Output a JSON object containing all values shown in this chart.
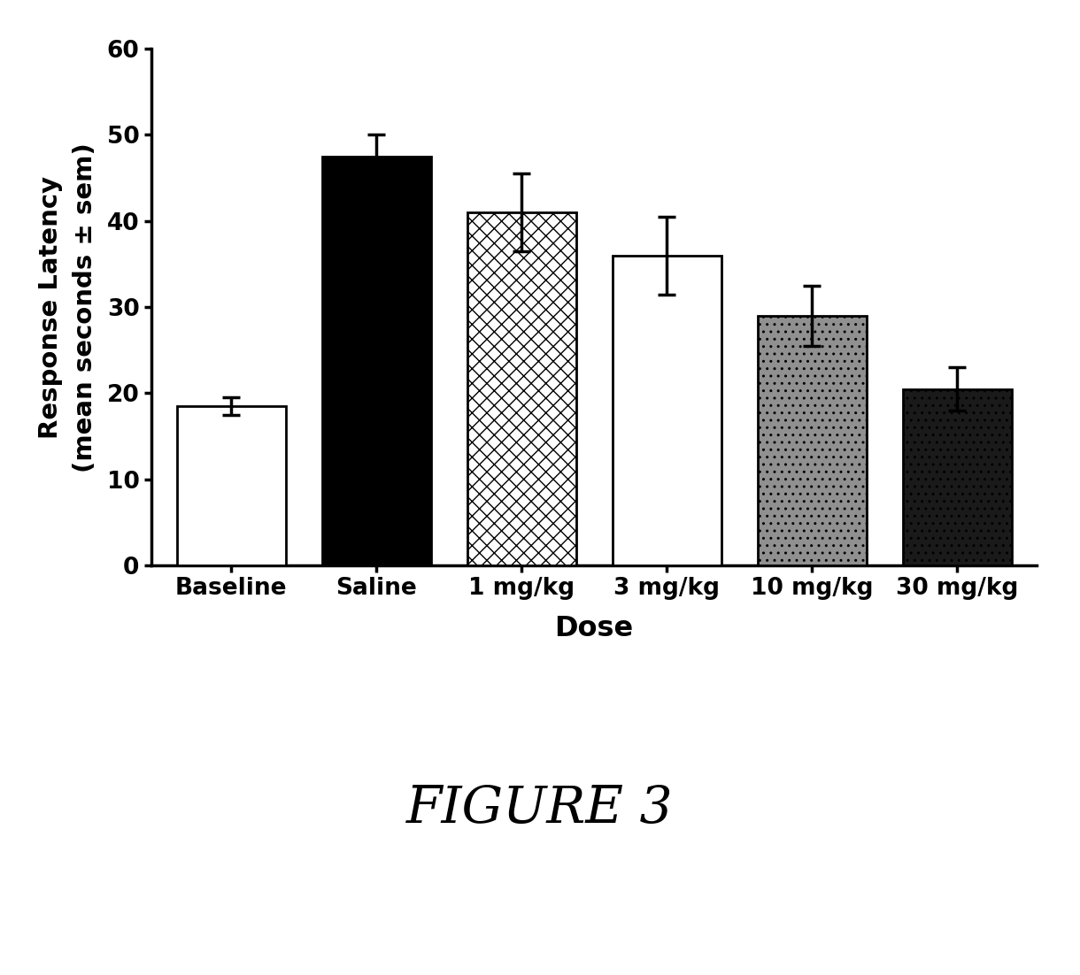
{
  "categories": [
    "Baseline",
    "Saline",
    "1 mg/kg",
    "3 mg/kg",
    "10 mg/kg",
    "30 mg/kg"
  ],
  "values": [
    18.5,
    47.5,
    41.0,
    36.0,
    29.0,
    20.5
  ],
  "errors": [
    1.0,
    2.5,
    4.5,
    4.5,
    3.5,
    2.5
  ],
  "ylabel": "Response Latency\n(mean seconds ± sem)",
  "xlabel": "Dose",
  "ylim": [
    0,
    60
  ],
  "yticks": [
    0,
    10,
    20,
    30,
    40,
    50,
    60
  ],
  "figure_label": "FIGURE 3",
  "background_color": "#ffffff",
  "bar_width": 0.75,
  "figure_label_fontsize": 42,
  "label_fontsize": 21,
  "tick_fontsize": 19,
  "xlabel_fontsize": 23
}
